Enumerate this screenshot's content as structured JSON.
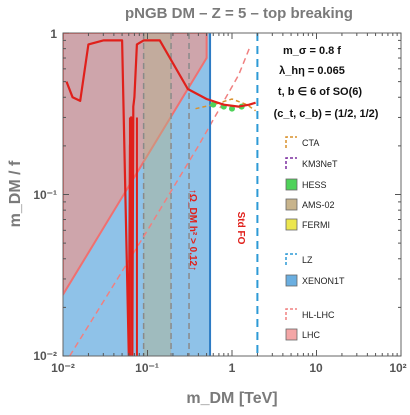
{
  "chart_data": {
    "type": "line",
    "title": "pNGB DM  –  Z = 5  –  top breaking",
    "xlabel": "m_DM   [TeV]",
    "ylabel": "m_DM / f",
    "xscale": "log",
    "yscale": "log",
    "xlim": [
      0.01,
      100
    ],
    "ylim": [
      0.01,
      1
    ],
    "x_ticks": [
      "10⁻²",
      "10⁻¹",
      "1",
      "10",
      "10²"
    ],
    "y_ticks": [
      "10⁻²",
      "10⁻¹",
      "1"
    ],
    "grid": false,
    "legend_position": "right",
    "parameters": [
      "m_σ = 0.8 f",
      "λ_hη = 0.065",
      "t, b ∈ 6 of SO(6)",
      "(c_t, c_b) = (1/2, 1/2)"
    ],
    "annotations": {
      "relic": "↑Ω_DM h² > 0.12↑",
      "freeze_out": "Std FO"
    },
    "legend": [
      {
        "label": "CTA",
        "style": "dashed",
        "color": "#d9902b"
      },
      {
        "label": "KM3NeT",
        "style": "dashed",
        "color": "#7b2f9f"
      },
      {
        "label": "HESS",
        "style": "filled",
        "color": "#4fd25a"
      },
      {
        "label": "AMS-02",
        "style": "filled",
        "color": "#c8b48c"
      },
      {
        "label": "FERMI",
        "style": "filled",
        "color": "#ece64f"
      },
      {
        "label": "LZ",
        "style": "dashed",
        "color": "#2d9ad6"
      },
      {
        "label": "XENON1T",
        "style": "filled",
        "color": "#6aaee0"
      },
      {
        "label": "HL-LHC",
        "style": "dashed",
        "color": "#f08080"
      },
      {
        "label": "LHC",
        "style": "filled",
        "color": "#f4a6a6"
      }
    ],
    "series": [
      {
        "name": "XENON1T",
        "x": [
          0.01,
          0.3,
          0.55,
          0.55,
          0.01
        ],
        "y": [
          1,
          1,
          1,
          0.01,
          0.01
        ]
      },
      {
        "name": "LHC",
        "x": [
          0.01,
          0.01,
          0.5,
          0.5
        ],
        "y": [
          0.024,
          1,
          1,
          0.7
        ]
      },
      {
        "name": "AMS-02",
        "x": [
          0.09,
          0.19,
          0.19,
          0.09
        ],
        "y": [
          1,
          1,
          0.01,
          0.01
        ]
      },
      {
        "name": "HL-LHC",
        "x": [
          0.012,
          0.1,
          0.4,
          1.2,
          1.6
        ],
        "y": [
          0.01,
          0.06,
          0.2,
          0.55,
          0.8
        ]
      },
      {
        "name": "LZ",
        "x": [
          2.0,
          2.0
        ],
        "y": [
          1,
          0.01
        ]
      },
      {
        "name": "CTA",
        "x": [
          0.37,
          0.6,
          1.0,
          1.5,
          1.9
        ],
        "y": [
          0.34,
          0.36,
          0.39,
          0.36,
          0.33
        ]
      },
      {
        "name": "HESS",
        "x": [
          0.6,
          0.8,
          1.0,
          1.3
        ],
        "y": [
          0.36,
          0.35,
          0.34,
          0.35
        ]
      },
      {
        "name": "relic abundance",
        "x": [
          0.011,
          0.013,
          0.016,
          0.02,
          0.03,
          0.05,
          0.06,
          0.062,
          0.064,
          0.066,
          0.068,
          0.07,
          0.075,
          0.09,
          0.14,
          0.3,
          0.5,
          0.8,
          1.2,
          1.6,
          1.9
        ],
        "y": [
          0.5,
          0.4,
          0.38,
          0.85,
          0.9,
          0.9,
          0.01,
          0.2,
          0.3,
          0.01,
          0.35,
          0.4,
          0.85,
          0.9,
          0.9,
          0.45,
          0.39,
          0.36,
          0.35,
          0.36,
          0.37
        ]
      }
    ]
  }
}
